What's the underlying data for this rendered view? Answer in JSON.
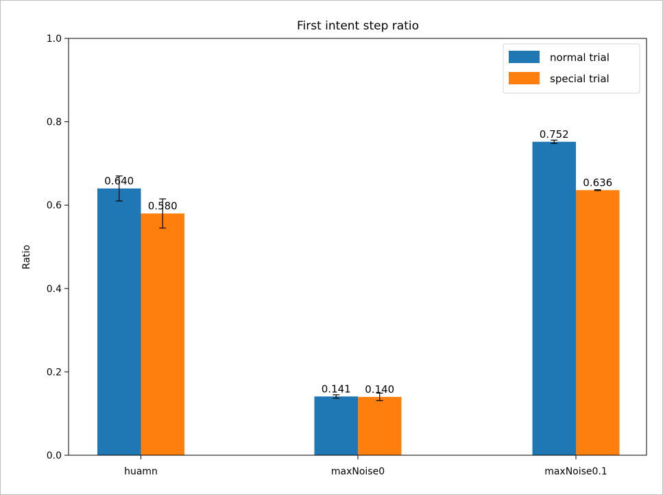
{
  "chart_data": {
    "type": "bar",
    "title": "First intent step ratio",
    "xlabel": "",
    "ylabel": "Ratio",
    "ylim": [
      0,
      1.0
    ],
    "yticks": [
      0.0,
      0.2,
      0.4,
      0.6,
      0.8,
      1.0
    ],
    "ytick_labels": [
      "0.0",
      "0.2",
      "0.4",
      "0.6",
      "0.8",
      "1.0"
    ],
    "categories": [
      "huamn",
      "maxNoise0",
      "maxNoise0.1"
    ],
    "series": [
      {
        "name": "normal trial",
        "color": "#1f77b4",
        "values": [
          0.64,
          0.141,
          0.752
        ],
        "errors": [
          0.03,
          0.004,
          0.004
        ],
        "labels": [
          "0.640",
          "0.141",
          "0.752"
        ]
      },
      {
        "name": "special trial",
        "color": "#ff7f0e",
        "values": [
          0.58,
          0.14,
          0.636
        ],
        "errors": [
          0.035,
          0.009,
          0.001
        ],
        "labels": [
          "0.580",
          "0.140",
          "0.636"
        ]
      }
    ],
    "legend_position": "top-right",
    "grid": false
  }
}
